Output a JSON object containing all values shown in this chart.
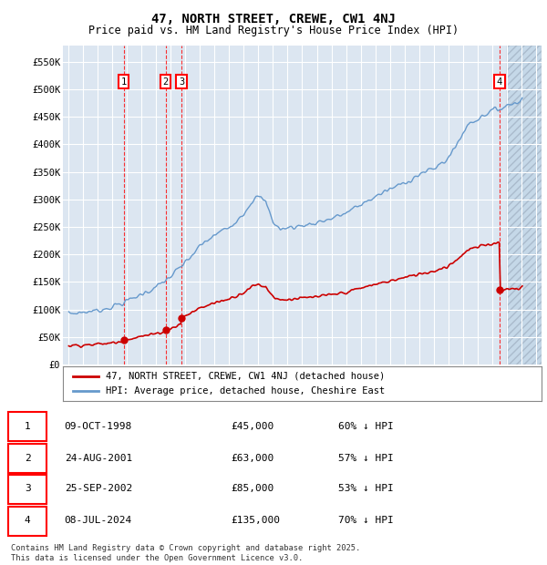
{
  "title": "47, NORTH STREET, CREWE, CW1 4NJ",
  "subtitle": "Price paid vs. HM Land Registry's House Price Index (HPI)",
  "ylim": [
    0,
    580000
  ],
  "yticks": [
    0,
    50000,
    100000,
    150000,
    200000,
    250000,
    300000,
    350000,
    400000,
    450000,
    500000,
    550000
  ],
  "ytick_labels": [
    "£0",
    "£50K",
    "£100K",
    "£150K",
    "£200K",
    "£250K",
    "£300K",
    "£350K",
    "£400K",
    "£450K",
    "£500K",
    "£550K"
  ],
  "xlim_start": 1994.6,
  "xlim_end": 2027.4,
  "bg_color": "#dce6f1",
  "grid_color": "#ffffff",
  "hpi_line_color": "#6699cc",
  "price_line_color": "#cc0000",
  "hatch_color": "#c5d8e8",
  "transactions": [
    {
      "id": 1,
      "date": "09-OCT-1998",
      "year": 1998.77,
      "price": 45000,
      "pct": "60% ↓ HPI"
    },
    {
      "id": 2,
      "date": "24-AUG-2001",
      "year": 2001.64,
      "price": 63000,
      "pct": "57% ↓ HPI"
    },
    {
      "id": 3,
      "date": "25-SEP-2002",
      "year": 2002.73,
      "price": 85000,
      "pct": "53% ↓ HPI"
    },
    {
      "id": 4,
      "date": "08-JUL-2024",
      "year": 2024.52,
      "price": 135000,
      "pct": "70% ↓ HPI"
    }
  ],
  "legend_label_price": "47, NORTH STREET, CREWE, CW1 4NJ (detached house)",
  "legend_label_hpi": "HPI: Average price, detached house, Cheshire East",
  "footer": "Contains HM Land Registry data © Crown copyright and database right 2025.\nThis data is licensed under the Open Government Licence v3.0.",
  "table_rows": [
    {
      "id": 1,
      "date": "09-OCT-1998",
      "price": "£45,000",
      "pct": "60% ↓ HPI"
    },
    {
      "id": 2,
      "date": "24-AUG-2001",
      "price": "£63,000",
      "pct": "57% ↓ HPI"
    },
    {
      "id": 3,
      "date": "25-SEP-2002",
      "price": "£85,000",
      "pct": "53% ↓ HPI"
    },
    {
      "id": 4,
      "date": "08-JUL-2024",
      "price": "£135,000",
      "pct": "70% ↓ HPI"
    }
  ]
}
